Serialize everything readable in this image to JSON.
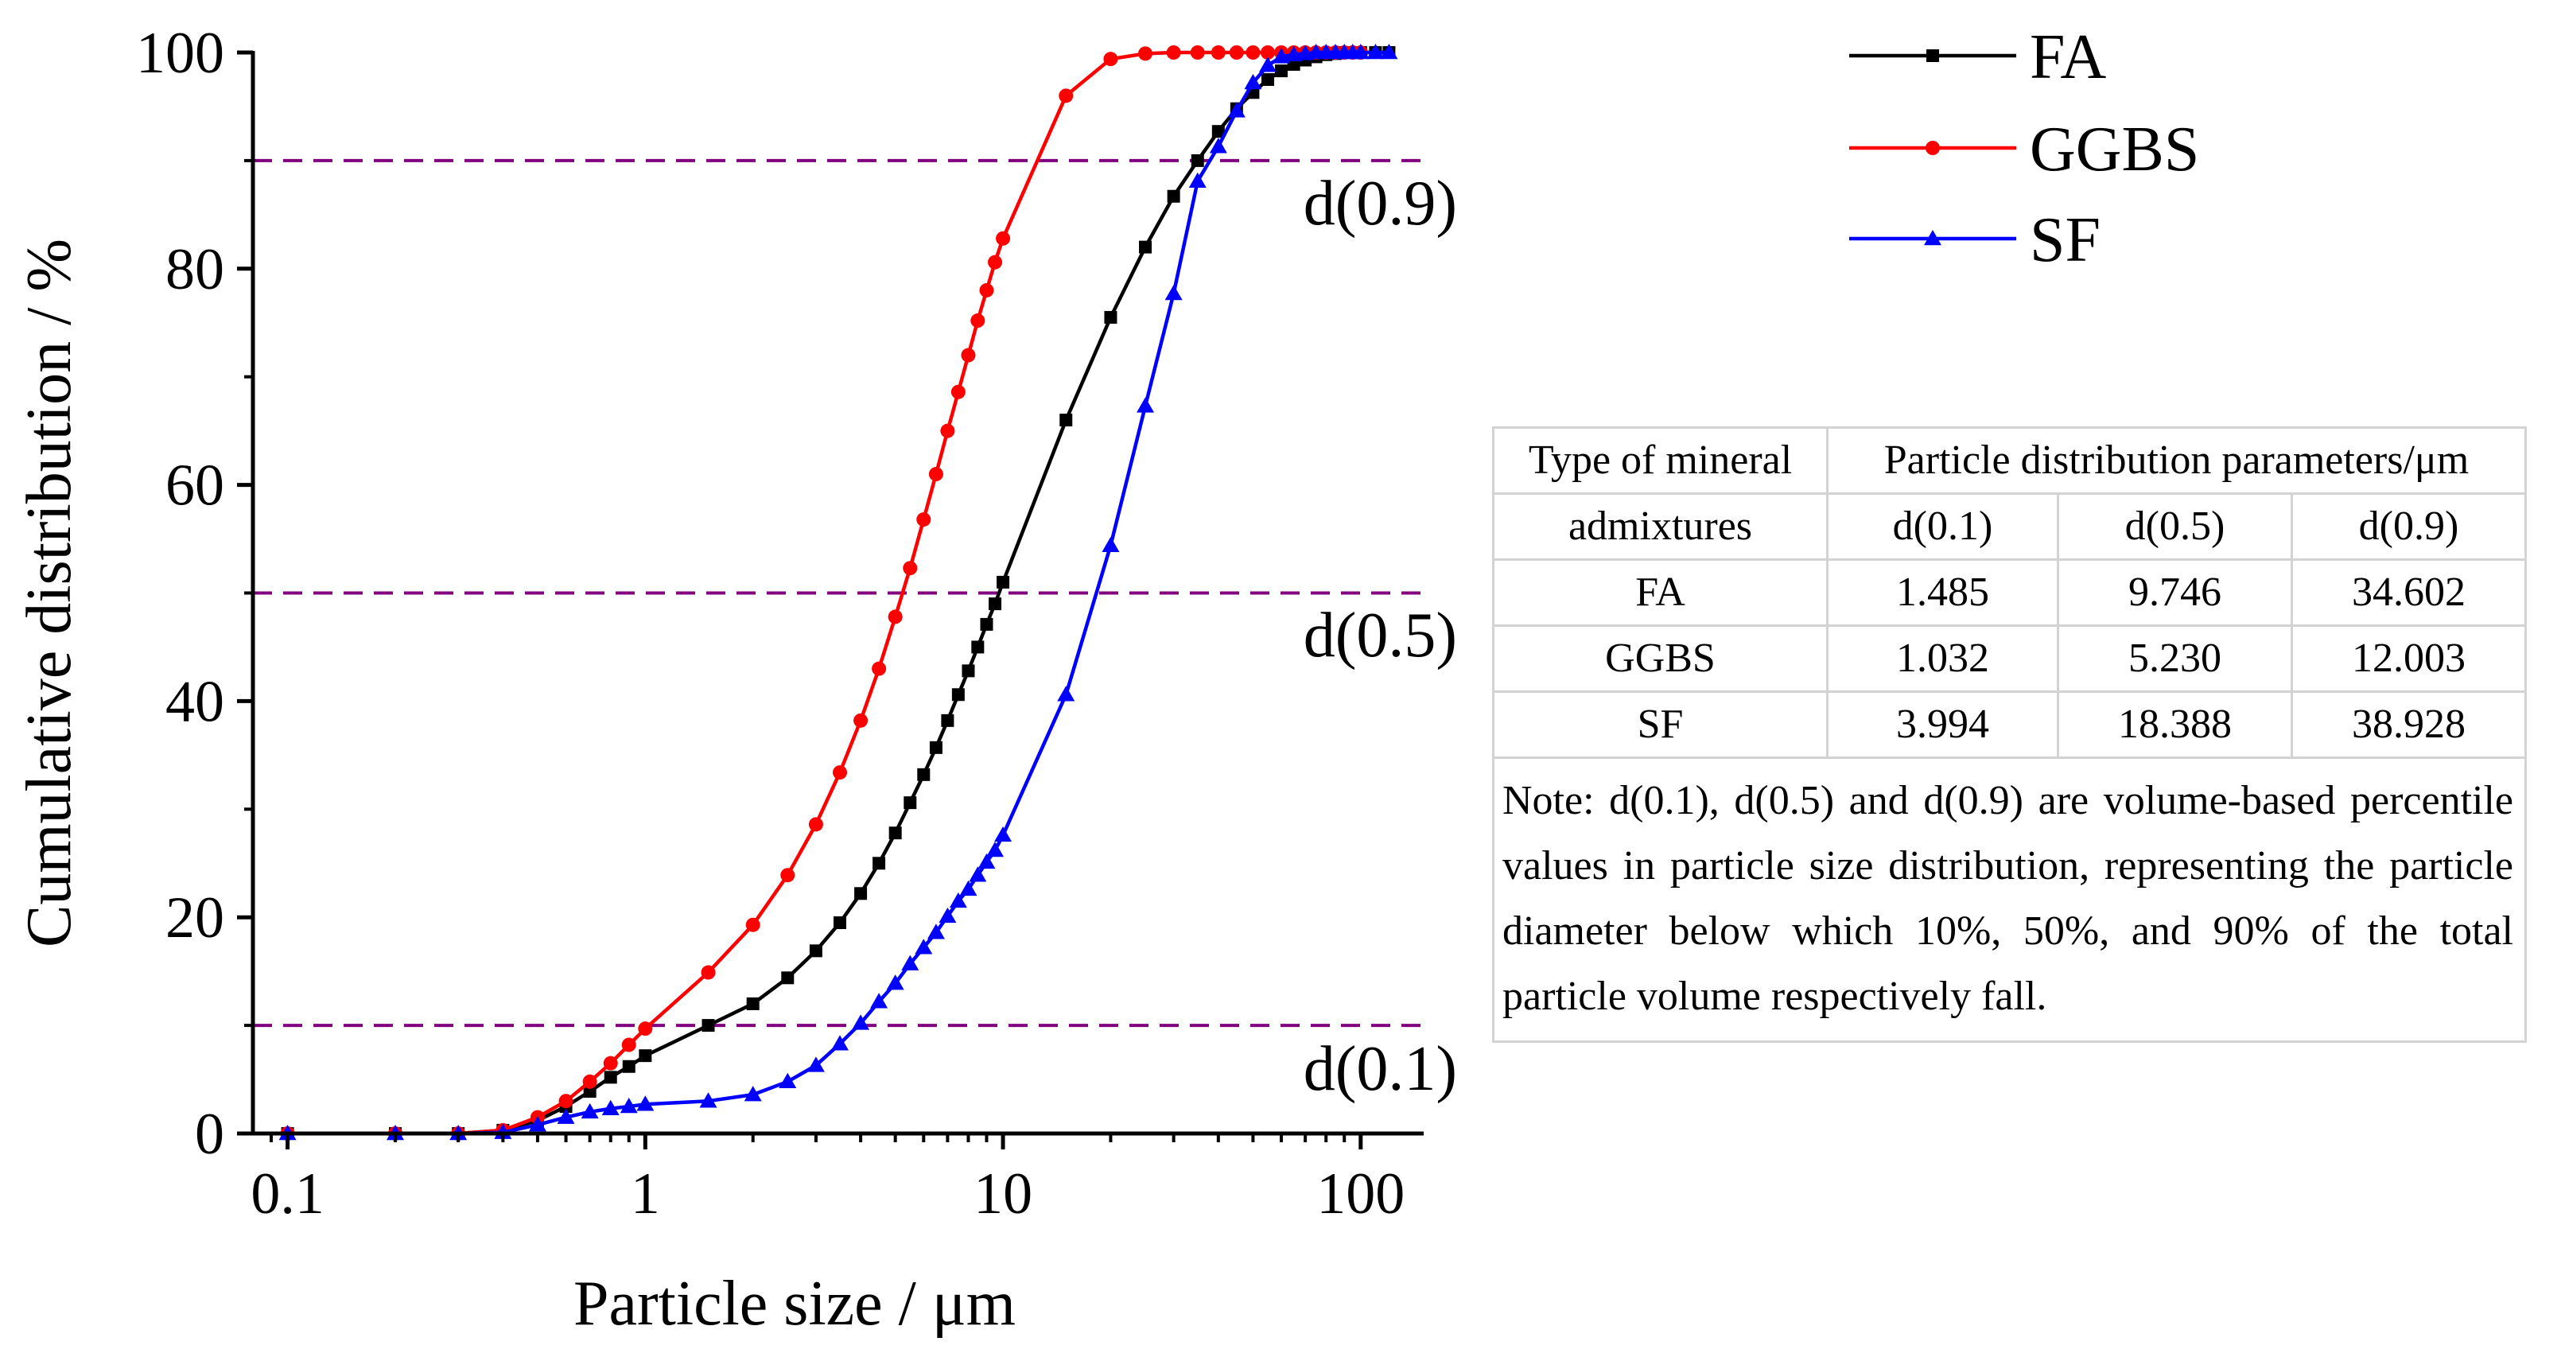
{
  "chart_data": {
    "type": "line",
    "title": "",
    "xlabel": "Particle size / μm",
    "ylabel": "Cumulative distribution / %",
    "xscale": "log",
    "xlim": [
      0.08,
      150
    ],
    "ylim": [
      0,
      100
    ],
    "xticks": [
      {
        "value": 0.1,
        "label": "0.1"
      },
      {
        "value": 1,
        "label": "1"
      },
      {
        "value": 10,
        "label": "10"
      },
      {
        "value": 100,
        "label": "100"
      }
    ],
    "yticks": [
      {
        "value": 0,
        "label": "0"
      },
      {
        "value": 20,
        "label": "20"
      },
      {
        "value": 40,
        "label": "40"
      },
      {
        "value": 60,
        "label": "60"
      },
      {
        "value": 80,
        "label": "80"
      },
      {
        "value": 100,
        "label": "100"
      }
    ],
    "grid": false,
    "legend_position": "top-right",
    "reference_lines": [
      {
        "y": 10,
        "label": "d(0.1)",
        "color": "#800080"
      },
      {
        "y": 50,
        "label": "d(0.5)",
        "color": "#800080"
      },
      {
        "y": 90,
        "label": "d(0.9)",
        "color": "#800080"
      }
    ],
    "series": [
      {
        "name": "FA",
        "color": "#000000",
        "marker": "square",
        "x": [
          0.1,
          0.2,
          0.3,
          0.4,
          0.5,
          0.6,
          0.7,
          0.8,
          0.9,
          1.0,
          1.5,
          2.0,
          2.5,
          3.0,
          3.5,
          4.0,
          4.5,
          5.0,
          5.5,
          6.0,
          6.5,
          7.0,
          7.5,
          8.0,
          8.5,
          9.0,
          9.5,
          10,
          15,
          20,
          25,
          30,
          35,
          40,
          45,
          50,
          55,
          60,
          65,
          70,
          75,
          80,
          85,
          90,
          95,
          100,
          110,
          120
        ],
        "y": [
          0,
          0,
          0,
          0.3,
          1.2,
          2.5,
          3.9,
          5.2,
          6.2,
          7.2,
          10.0,
          12.0,
          14.4,
          16.9,
          19.5,
          22.2,
          25.0,
          27.8,
          30.6,
          33.2,
          35.7,
          38.2,
          40.6,
          42.8,
          45.0,
          47.1,
          49.0,
          51.0,
          66.0,
          75.5,
          82.0,
          86.7,
          90.0,
          92.7,
          94.8,
          96.3,
          97.5,
          98.3,
          98.9,
          99.3,
          99.6,
          99.8,
          99.9,
          100,
          100,
          100,
          100,
          100
        ]
      },
      {
        "name": "GGBS",
        "color": "#ff0000",
        "marker": "circle",
        "x": [
          0.1,
          0.2,
          0.3,
          0.4,
          0.5,
          0.6,
          0.7,
          0.8,
          0.9,
          1.0,
          1.5,
          2.0,
          2.5,
          3.0,
          3.5,
          4.0,
          4.5,
          5.0,
          5.5,
          6.0,
          6.5,
          7.0,
          7.5,
          8.0,
          8.5,
          9.0,
          9.5,
          10,
          15,
          20,
          25,
          30,
          35,
          40,
          45,
          50,
          55,
          60,
          65,
          70,
          75,
          80,
          85,
          90,
          95,
          100
        ],
        "y": [
          0,
          0,
          0,
          0.3,
          1.5,
          3.0,
          4.8,
          6.5,
          8.2,
          9.7,
          14.9,
          19.3,
          23.9,
          28.6,
          33.4,
          38.2,
          43.0,
          47.8,
          52.3,
          56.8,
          61.0,
          65.0,
          68.6,
          72.0,
          75.2,
          78.0,
          80.6,
          82.8,
          96.0,
          99.4,
          99.9,
          100,
          100,
          100,
          100,
          100,
          100,
          100,
          100,
          100,
          100,
          100,
          100,
          100,
          100,
          100
        ]
      },
      {
        "name": "SF",
        "color": "#0000ff",
        "marker": "triangle",
        "x": [
          0.1,
          0.2,
          0.3,
          0.4,
          0.5,
          0.6,
          0.7,
          0.8,
          0.9,
          1.0,
          1.5,
          2.0,
          2.5,
          3.0,
          3.5,
          4.0,
          4.5,
          5.0,
          5.5,
          6.0,
          6.5,
          7.0,
          7.5,
          8.0,
          8.5,
          9.0,
          9.5,
          10,
          15,
          20,
          25,
          30,
          35,
          40,
          45,
          50,
          55,
          60,
          65,
          70,
          75,
          80,
          85,
          90,
          95,
          100,
          110,
          120
        ],
        "y": [
          0,
          0,
          0,
          0.1,
          0.8,
          1.5,
          2.0,
          2.3,
          2.5,
          2.7,
          3.0,
          3.6,
          4.8,
          6.3,
          8.3,
          10.2,
          12.2,
          13.9,
          15.7,
          17.2,
          18.6,
          20.1,
          21.5,
          22.6,
          23.9,
          25.1,
          26.2,
          27.6,
          40.6,
          54.4,
          67.3,
          77.7,
          88.1,
          91.3,
          94.6,
          97.2,
          98.8,
          99.6,
          99.8,
          99.9,
          100,
          100,
          100,
          100,
          100,
          100,
          100,
          100
        ]
      }
    ]
  },
  "table": {
    "header": {
      "type_line1": "Type of mineral",
      "type_line2": "admixtures",
      "params": "Particle distribution parameters/μm",
      "d01": "d(0.1)",
      "d05": "d(0.5)",
      "d09": "d(0.9)"
    },
    "rows": [
      {
        "type": "FA",
        "d01": "1.485",
        "d05": "9.746",
        "d09": "34.602"
      },
      {
        "type": "GGBS",
        "d01": "1.032",
        "d05": "5.230",
        "d09": "12.003"
      },
      {
        "type": "SF",
        "d01": "3.994",
        "d05": "18.388",
        "d09": "38.928"
      }
    ],
    "note": "Note: d(0.1), d(0.5) and d(0.9) are volume-based percentile values in particle size distribution, representing the particle diameter below which 10%, 50%, and 90% of the total particle volume respectively fall."
  }
}
